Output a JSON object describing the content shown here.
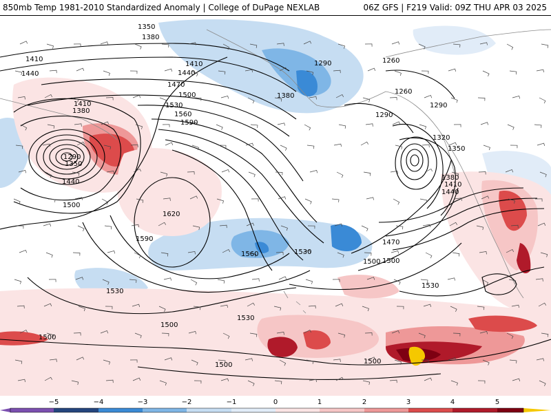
{
  "header": {
    "left_text": "850mb Temp 1981-2010 Standardized Anomaly | College of DuPage NEXLAB",
    "right_text": "06Z GFS | F219 Valid: 09Z THU APR 03 2025"
  },
  "colors": {
    "neg5": "#7b4fb0",
    "neg4": "#24457e",
    "neg3": "#3a8ad6",
    "neg2": "#7fb6e6",
    "neg1": "#c6ddf2",
    "neg05": "#e1ecf8",
    "zero": "#ffffff",
    "pos05": "#fbe4e4",
    "pos1": "#f6c6c6",
    "pos2": "#ee9898",
    "pos3": "#dc4b4b",
    "pos4": "#b01a2a",
    "pos5": "#7e0012",
    "pos6": "#f5c800",
    "contour": "#000000",
    "coast": "#8a8a8a"
  },
  "map": {
    "contour_labels": [
      {
        "text": "1350"
      },
      {
        "text": "1380"
      },
      {
        "text": "1410"
      },
      {
        "text": "1440"
      },
      {
        "text": "1410"
      },
      {
        "text": "1440"
      },
      {
        "text": "1470"
      },
      {
        "text": "1500"
      },
      {
        "text": "1530"
      },
      {
        "text": "1560"
      },
      {
        "text": "1590"
      },
      {
        "text": "1410"
      },
      {
        "text": "1380"
      },
      {
        "text": "1290"
      },
      {
        "text": "1350"
      },
      {
        "text": "1440"
      },
      {
        "text": "1500"
      },
      {
        "text": "1620"
      },
      {
        "text": "1590"
      },
      {
        "text": "1560"
      },
      {
        "text": "1530"
      },
      {
        "text": "1530"
      },
      {
        "text": "1530"
      },
      {
        "text": "1500"
      },
      {
        "text": "1500"
      },
      {
        "text": "1500"
      },
      {
        "text": "1500"
      },
      {
        "text": "1500"
      },
      {
        "text": "1470"
      },
      {
        "text": "1380"
      },
      {
        "text": "1290"
      },
      {
        "text": "1260"
      },
      {
        "text": "1260"
      },
      {
        "text": "1290"
      },
      {
        "text": "1290"
      },
      {
        "text": "1320"
      },
      {
        "text": "1350"
      },
      {
        "text": "1380"
      },
      {
        "text": "1410"
      },
      {
        "text": "1440"
      },
      {
        "text": "1500"
      },
      {
        "text": "1530"
      }
    ]
  },
  "colorbar": {
    "ticks": [
      "−5",
      "−4",
      "−3",
      "−2",
      "−1",
      "0",
      "1",
      "2",
      "3",
      "4",
      "5"
    ]
  }
}
